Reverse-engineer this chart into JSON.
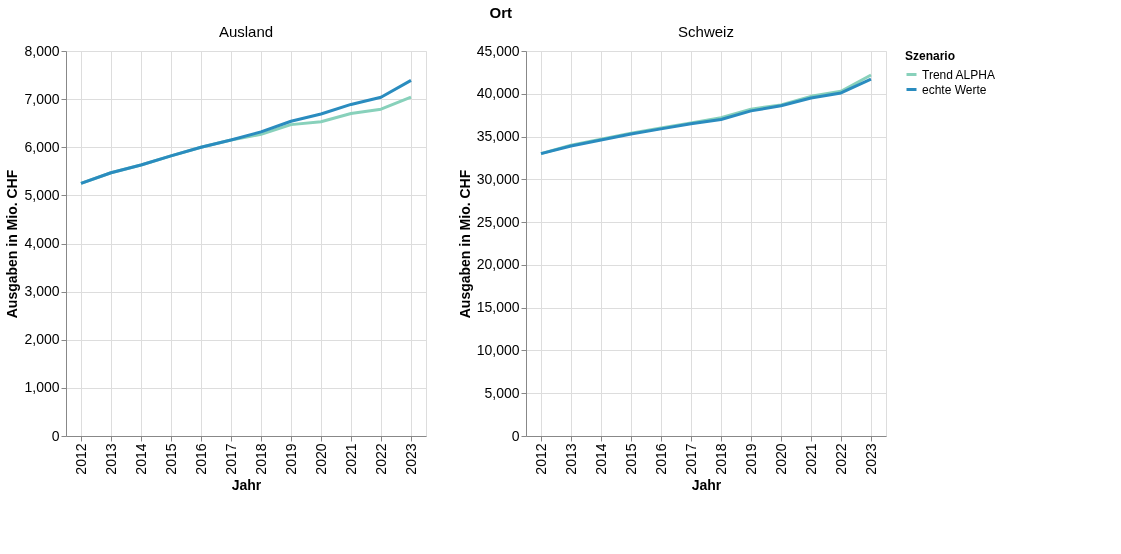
{
  "chart_data": [
    {
      "type": "line",
      "title": "Ausland",
      "annotations": [
        "Ort"
      ],
      "xlabel": "Jahr",
      "ylabel": "Ausgaben in Mio. CHF",
      "categories": [
        "2012",
        "2013",
        "2014",
        "2015",
        "2016",
        "2017",
        "2018",
        "2019",
        "2020",
        "2021",
        "2022",
        "2023"
      ],
      "series": [
        {
          "name": "Trend ALPHA",
          "color": "#88d1bb",
          "values": [
            5250,
            5470,
            5630,
            5820,
            6000,
            6150,
            6270,
            6470,
            6530,
            6700,
            6790,
            7040
          ]
        },
        {
          "name": "echte Werte",
          "color": "#2a8cbf",
          "values": [
            5250,
            5470,
            5630,
            5820,
            6000,
            6150,
            6320,
            6540,
            6690,
            6890,
            7040,
            7390
          ]
        }
      ],
      "ylim": [
        0,
        8000
      ],
      "yticks": [
        0,
        {
          "value": 1000,
          "label": "1,000"
        },
        {
          "value": 2000,
          "label": "2,000"
        },
        {
          "value": 3000,
          "label": "3,000"
        },
        {
          "value": 4000,
          "label": "4,000"
        },
        {
          "value": 5000,
          "label": "5,000"
        },
        {
          "value": 6000,
          "label": "6,000"
        },
        {
          "value": 7000,
          "label": "7,000"
        },
        {
          "value": 8000,
          "label": "8,000"
        }
      ],
      "grid": true,
      "legend": "right",
      "marker": "none",
      "line_style": "solid"
    },
    {
      "type": "line",
      "title": "Schweiz",
      "xlabel": "Jahr",
      "ylabel": "Ausgaben in Mio. CHF",
      "legend_title": "Szenario",
      "categories": [
        "2012",
        "2013",
        "2014",
        "2015",
        "2016",
        "2017",
        "2018",
        "2019",
        "2020",
        "2021",
        "2022",
        "2023"
      ],
      "series": [
        {
          "name": "Trend ALPHA",
          "color": "#88d1bb",
          "values": [
            33000,
            34000,
            34700,
            35400,
            36000,
            36600,
            37200,
            38200,
            38700,
            39700,
            40300,
            42200
          ]
        },
        {
          "name": "echte Werte",
          "color": "#2a8cbf",
          "values": [
            33000,
            33900,
            34600,
            35300,
            35900,
            36500,
            37000,
            38000,
            38600,
            39500,
            40100,
            41700
          ]
        }
      ],
      "ylim": [
        0,
        45000
      ],
      "yticks": [
        0,
        {
          "value": 5000,
          "label": "5,000"
        },
        {
          "value": 10000,
          "label": "10,000"
        },
        {
          "value": 15000,
          "label": "15,000"
        },
        {
          "value": 20000,
          "label": "20,000"
        },
        {
          "value": 25000,
          "label": "25,000"
        },
        {
          "value": 30000,
          "label": "30,000"
        },
        {
          "value": 35000,
          "label": "35,000"
        },
        {
          "value": 40000,
          "label": "40,000"
        },
        {
          "value": 45000,
          "label": "45,000"
        }
      ],
      "grid": true,
      "legend": "right",
      "marker": "none",
      "line_style": "solid"
    }
  ]
}
